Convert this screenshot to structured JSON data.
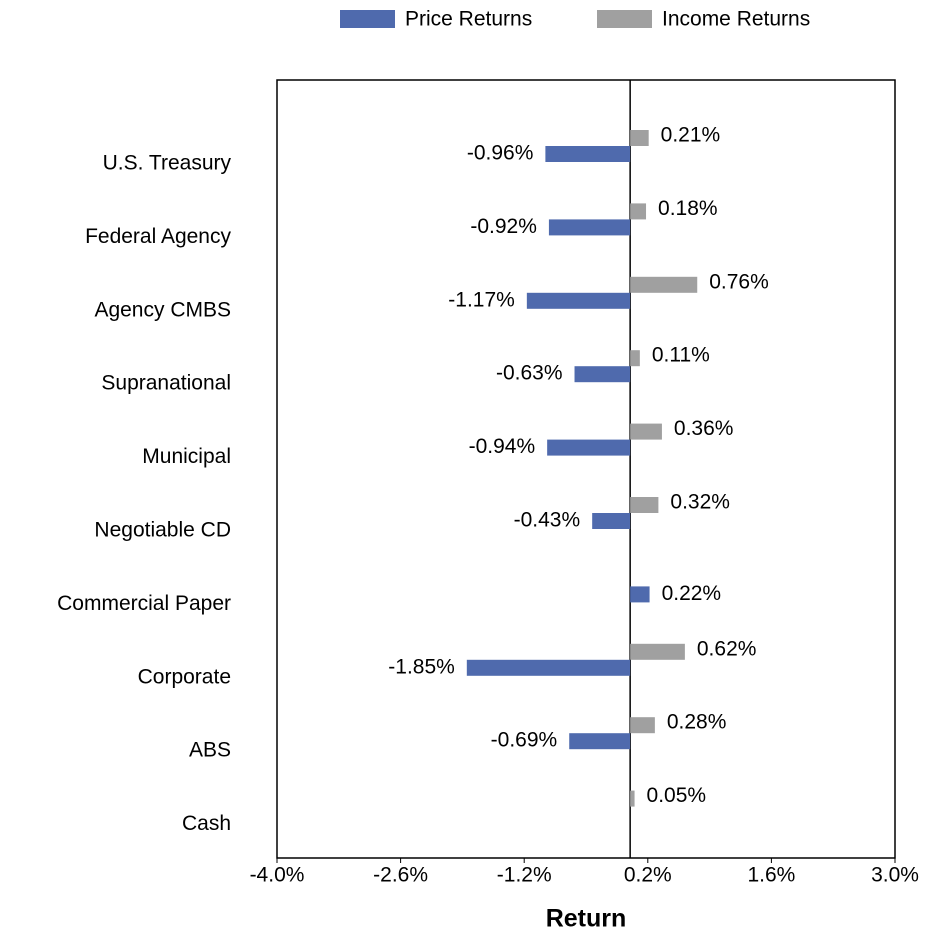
{
  "chart_data": {
    "type": "hbar",
    "x_label": "Return",
    "categories": [
      "U.S. Treasury",
      "Federal Agency",
      "Agency CMBS",
      "Supranational",
      "Municipal",
      "Negotiable CD",
      "Commercial Paper",
      "Corporate",
      "ABS",
      "Cash"
    ],
    "series": [
      {
        "name": "Price Returns",
        "color": "#4f6aad",
        "values": [
          -0.96,
          -0.92,
          -1.17,
          -0.63,
          -0.94,
          -0.43,
          0.22,
          -1.85,
          -0.69,
          null
        ],
        "value_labels": [
          "-0.96%",
          "-0.92%",
          "-1.17%",
          "-0.63%",
          "-0.94%",
          "-0.43%",
          "0.22%",
          "-1.85%",
          "-0.69%",
          null
        ]
      },
      {
        "name": "Income Returns",
        "color": "#a0a0a0",
        "values": [
          0.21,
          0.18,
          0.76,
          0.11,
          0.36,
          0.32,
          null,
          0.62,
          0.28,
          0.05
        ],
        "value_labels": [
          "0.21%",
          "0.18%",
          "0.76%",
          "0.11%",
          "0.36%",
          "0.32%",
          null,
          "0.62%",
          "0.28%",
          "0.05%"
        ]
      }
    ],
    "xlim": [
      -4.0,
      3.0
    ],
    "xticks": [
      {
        "value": -4.0,
        "label": "-4.0%"
      },
      {
        "value": -2.6,
        "label": "-2.6%"
      },
      {
        "value": -1.2,
        "label": "-1.2%"
      },
      {
        "value": 0.2,
        "label": "0.2%"
      },
      {
        "value": 1.6,
        "label": "1.6%"
      },
      {
        "value": 3.0,
        "label": "3.0%"
      }
    ],
    "legend": "top"
  }
}
